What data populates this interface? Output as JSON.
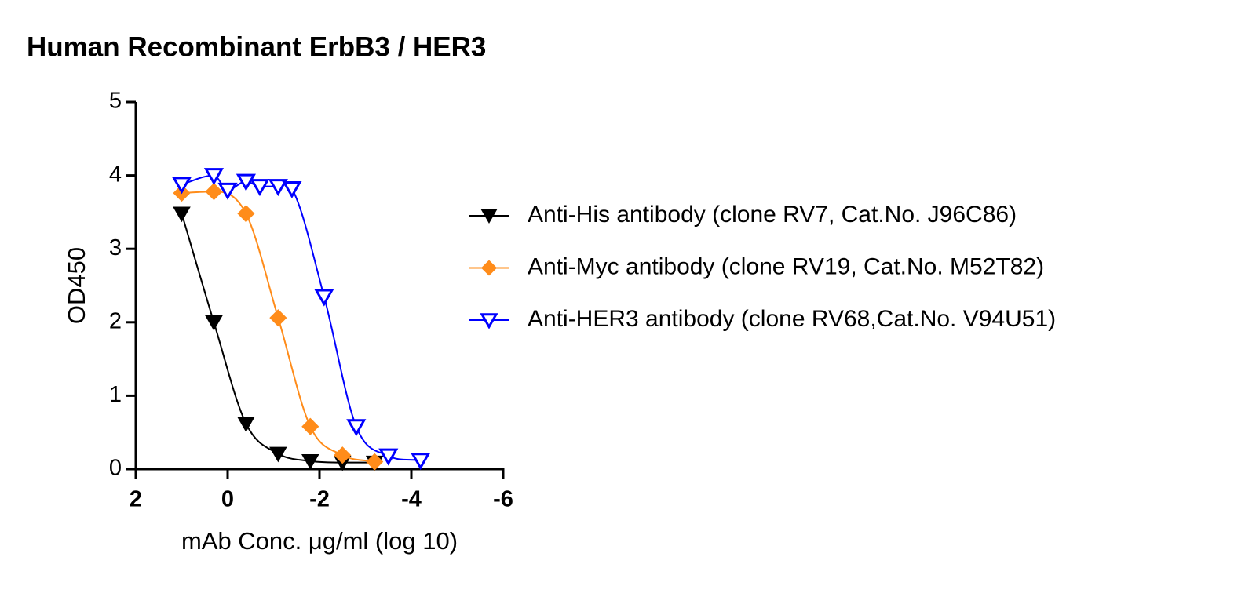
{
  "chart_data": {
    "type": "scatter",
    "title": "Human Recombinant ErbB3 / HER3",
    "x_label": "mAb Conc. μg/ml (log 10)",
    "y_label": "OD450",
    "xlim": [
      2,
      -6
    ],
    "xticks": [
      2,
      0,
      -2,
      -4,
      -6
    ],
    "ylim": [
      0,
      5
    ],
    "yticks": [
      0,
      1,
      2,
      3,
      4,
      5
    ],
    "series": [
      {
        "name": "Anti-His antibody (clone RV7, Cat.No. J96C86)",
        "color": "#000000",
        "marker": "triangle-down-filled",
        "x": [
          1,
          0.3,
          -0.4,
          -1.1,
          -1.8,
          -2.5,
          -3.2
        ],
        "values": [
          3.48,
          2.0,
          0.62,
          0.21,
          0.11,
          0.09,
          0.09
        ]
      },
      {
        "name": "Anti-Myc antibody (clone RV19, Cat.No. M52T82)",
        "color": "#ff8c1a",
        "marker": "diamond-filled",
        "x": [
          1,
          0.3,
          -0.4,
          -1.1,
          -1.8,
          -2.5,
          -3.2
        ],
        "values": [
          3.76,
          3.78,
          3.48,
          2.06,
          0.58,
          0.19,
          0.1
        ]
      },
      {
        "name": "Anti-HER3 antibody (clone RV68,Cat.No. V94U51)",
        "color": "#0000ff",
        "marker": "triangle-down-open",
        "x": [
          1,
          0.3,
          0,
          -0.4,
          -0.7,
          -1.1,
          -1.4,
          -2.1,
          -2.8,
          -3.5,
          -4.2
        ],
        "values": [
          3.88,
          4.0,
          3.8,
          3.92,
          3.85,
          3.85,
          3.82,
          2.35,
          0.58,
          0.18,
          0.12
        ]
      }
    ]
  }
}
